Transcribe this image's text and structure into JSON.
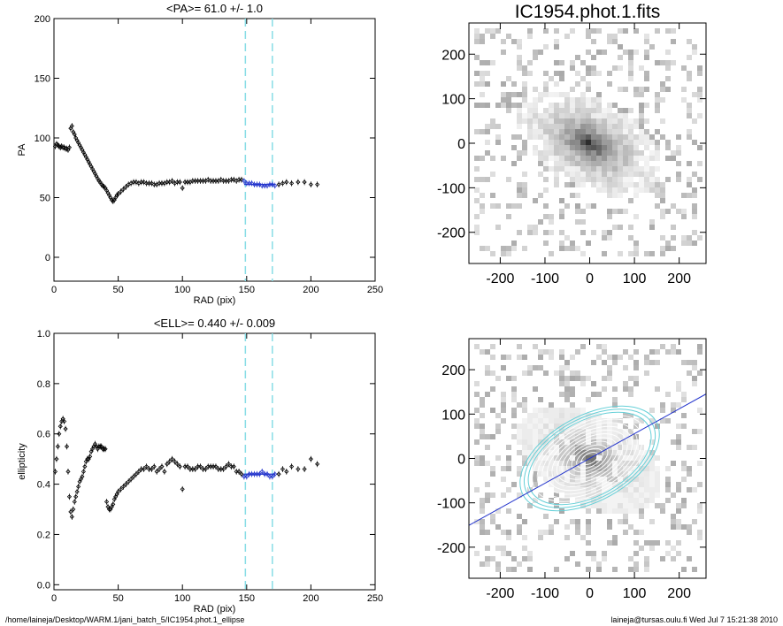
{
  "footer": {
    "path": "/home/laineja/Desktop/WARM.1/jani_batch_5/IC1954.phot.1_ellipse",
    "user_date": "laineja@tursas.oulu.fi  Wed Jul  7 15:21:38 2010"
  },
  "colors": {
    "data": "#000000",
    "fit": "#2233cc",
    "marker": "#88dde6",
    "contour": "#ffffff",
    "ring": "#66d0d8"
  },
  "chart_data": [
    {
      "type": "scatter",
      "title": "<PA>=  61.0 +/-   1.0",
      "xlabel": "RAD (pix)",
      "ylabel": "PA",
      "xlim": [
        0,
        250
      ],
      "ylim": [
        -20,
        200
      ],
      "xticks": [
        0,
        50,
        100,
        150,
        200,
        250
      ],
      "yticks": [
        0,
        50,
        100,
        150,
        200
      ],
      "vlines": [
        149,
        170
      ],
      "fit_range": [
        148,
        172
      ],
      "fit_value": 61.0,
      "grid": false,
      "series": [
        {
          "x": [
            1,
            2,
            3,
            4,
            5,
            6,
            7,
            8,
            9,
            10,
            11,
            12,
            13,
            14,
            15,
            16,
            17,
            18,
            19,
            20,
            21,
            22,
            23,
            24,
            25,
            26,
            27,
            28,
            29,
            30,
            31,
            32,
            33,
            34,
            35,
            36,
            37,
            38,
            39,
            40,
            41,
            42,
            43,
            44,
            45,
            46,
            47,
            48,
            49,
            50,
            52,
            54,
            56,
            58,
            60,
            62,
            64,
            66,
            68,
            70,
            72,
            74,
            76,
            78,
            80,
            82,
            84,
            86,
            88,
            90,
            92,
            94,
            96,
            98,
            100,
            102,
            104,
            106,
            108,
            110,
            112,
            114,
            116,
            118,
            120,
            122,
            124,
            126,
            128,
            130,
            132,
            134,
            136,
            138,
            140,
            142,
            144,
            146,
            148,
            150,
            152,
            154,
            156,
            158,
            160,
            162,
            164,
            166,
            168,
            170,
            172,
            175,
            178,
            181,
            185,
            190,
            195,
            200,
            205
          ],
          "y": [
            93,
            95,
            94,
            93,
            92,
            93,
            92,
            92,
            91,
            91,
            90,
            92,
            108,
            110,
            105,
            103,
            100,
            98,
            96,
            94,
            92,
            90,
            88,
            86,
            84,
            82,
            80,
            78,
            76,
            74,
            72,
            70,
            68,
            66,
            64,
            63,
            61,
            60,
            59,
            58,
            56,
            54,
            52,
            50,
            48,
            47,
            48,
            50,
            52,
            53,
            55,
            57,
            59,
            61,
            62,
            63,
            63,
            62,
            63,
            63,
            62,
            62,
            62,
            61,
            61,
            62,
            62,
            62,
            63,
            63,
            64,
            62,
            63,
            63,
            58,
            63,
            63,
            63,
            64,
            64,
            64,
            64,
            64,
            64,
            65,
            64,
            64,
            64,
            64,
            65,
            64,
            64,
            64,
            65,
            65,
            64,
            65,
            65,
            64,
            62,
            62,
            62,
            61,
            61,
            61,
            60,
            60,
            60,
            61,
            61,
            60,
            61,
            62,
            63,
            62,
            63,
            63,
            61,
            61
          ]
        }
      ]
    },
    {
      "type": "scatter",
      "title": "<ELL>= 0.440 +/-  0.009",
      "xlabel": "RAD (pix)",
      "ylabel": "ellipticity",
      "xlim": [
        0,
        250
      ],
      "ylim": [
        -0.02,
        1.0
      ],
      "xticks": [
        0,
        50,
        100,
        150,
        200,
        250
      ],
      "yticks": [
        0.0,
        0.2,
        0.4,
        0.6,
        0.8,
        1.0
      ],
      "vlines": [
        149,
        170
      ],
      "fit_range": [
        148,
        172
      ],
      "fit_value": 0.44,
      "grid": false,
      "series": [
        {
          "x": [
            1,
            2,
            3,
            4,
            5,
            6,
            7,
            8,
            9,
            10,
            11,
            12,
            13,
            14,
            15,
            16,
            17,
            18,
            19,
            20,
            21,
            22,
            23,
            24,
            25,
            26,
            27,
            28,
            29,
            30,
            31,
            32,
            33,
            34,
            35,
            36,
            37,
            38,
            39,
            40,
            41,
            42,
            43,
            44,
            45,
            46,
            47,
            48,
            49,
            50,
            52,
            54,
            56,
            58,
            60,
            62,
            64,
            66,
            68,
            70,
            72,
            74,
            76,
            78,
            80,
            82,
            84,
            86,
            88,
            90,
            92,
            94,
            96,
            98,
            100,
            102,
            104,
            106,
            108,
            110,
            112,
            114,
            116,
            118,
            120,
            122,
            124,
            126,
            128,
            130,
            132,
            134,
            136,
            138,
            140,
            142,
            144,
            146,
            148,
            150,
            152,
            154,
            156,
            158,
            160,
            162,
            164,
            166,
            168,
            170,
            172,
            175,
            178,
            181,
            185,
            190,
            195,
            200,
            205
          ],
          "y": [
            0.45,
            0.5,
            0.55,
            0.6,
            0.63,
            0.65,
            0.66,
            0.65,
            0.62,
            0.55,
            0.45,
            0.35,
            0.29,
            0.27,
            0.3,
            0.33,
            0.35,
            0.37,
            0.39,
            0.41,
            0.42,
            0.43,
            0.45,
            0.47,
            0.49,
            0.5,
            0.5,
            0.51,
            0.53,
            0.54,
            0.55,
            0.56,
            0.55,
            0.54,
            0.55,
            0.55,
            0.55,
            0.54,
            0.54,
            0.54,
            0.33,
            0.31,
            0.3,
            0.3,
            0.31,
            0.32,
            0.34,
            0.35,
            0.36,
            0.37,
            0.38,
            0.39,
            0.4,
            0.41,
            0.42,
            0.43,
            0.44,
            0.45,
            0.46,
            0.46,
            0.47,
            0.46,
            0.46,
            0.47,
            0.45,
            0.46,
            0.47,
            0.45,
            0.48,
            0.49,
            0.5,
            0.49,
            0.48,
            0.47,
            0.38,
            0.47,
            0.47,
            0.46,
            0.46,
            0.46,
            0.47,
            0.47,
            0.46,
            0.46,
            0.47,
            0.47,
            0.47,
            0.47,
            0.46,
            0.46,
            0.46,
            0.47,
            0.48,
            0.47,
            0.47,
            0.45,
            0.45,
            0.44,
            0.43,
            0.43,
            0.44,
            0.44,
            0.44,
            0.44,
            0.44,
            0.45,
            0.44,
            0.44,
            0.43,
            0.43,
            0.44,
            0.44,
            0.46,
            0.45,
            0.47,
            0.46,
            0.46,
            0.5,
            0.48
          ]
        }
      ]
    },
    {
      "type": "heatmap",
      "title": "IC1954.phot.1.fits",
      "xlabel": "",
      "ylabel": "",
      "xlim": [
        -270,
        260
      ],
      "ylim": [
        -270,
        270
      ],
      "xticks": [
        -200,
        -100,
        0,
        100,
        200
      ],
      "yticks": [
        -200,
        -100,
        0,
        100,
        200
      ],
      "galaxy": {
        "center": [
          0,
          0
        ],
        "semi_major": 160,
        "ellipticity": 0.44,
        "pa": 61
      }
    },
    {
      "type": "heatmap",
      "title": "",
      "xlabel": "",
      "ylabel": "",
      "xlim": [
        -270,
        260
      ],
      "ylim": [
        -270,
        270
      ],
      "xticks": [
        -200,
        -100,
        0,
        100,
        200
      ],
      "yticks": [
        -200,
        -100,
        0,
        100,
        200
      ],
      "overlay_isophotes": true,
      "major_axis_line": true,
      "galaxy": {
        "center": [
          0,
          0
        ],
        "semi_major": 160,
        "ellipticity": 0.44,
        "pa": 61
      }
    }
  ]
}
